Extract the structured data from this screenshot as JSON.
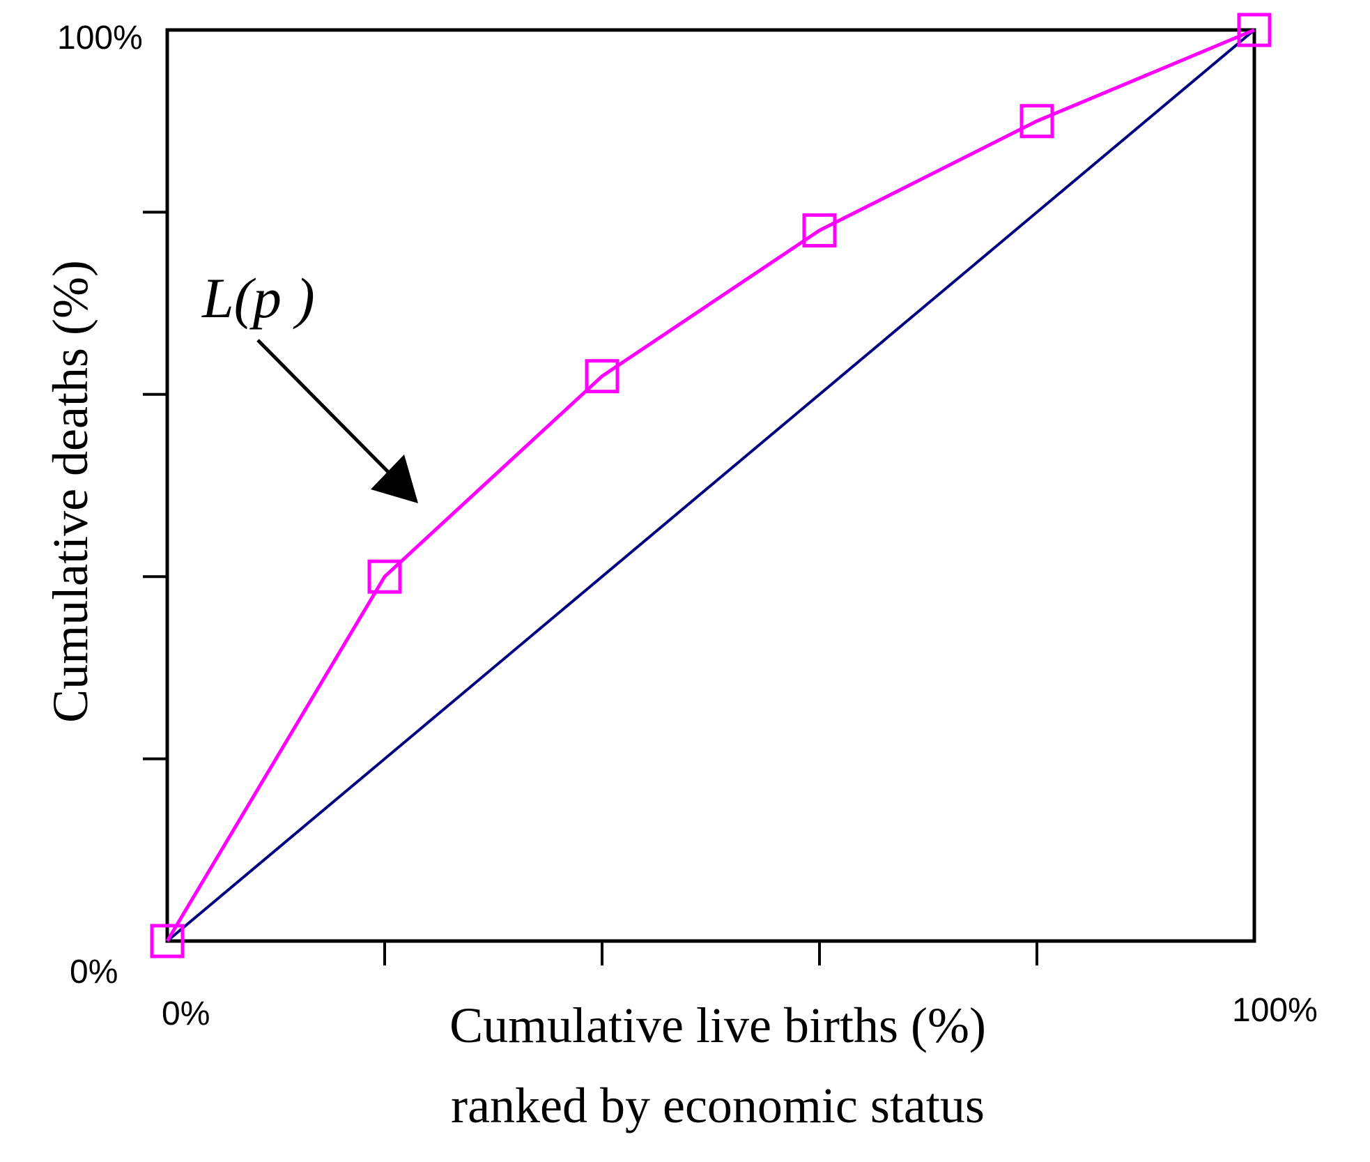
{
  "chart_data": {
    "type": "line",
    "x": [
      0,
      20,
      40,
      60,
      80,
      100
    ],
    "series": [
      {
        "values": [
          0,
          40,
          62,
          78,
          90,
          100
        ],
        "color": "#ff00ff",
        "marker": "square"
      },
      {
        "values": [
          0,
          20,
          40,
          60,
          80,
          100
        ],
        "color": "#000080",
        "marker": "none"
      }
    ],
    "x_tick_labels": [
      "0%",
      "100%"
    ],
    "y_tick_labels": [
      "0%",
      "100%"
    ],
    "xlabel_lines": [
      "Cumulative live births (%)",
      "ranked by economic status"
    ],
    "ylabel": "Cumulative deaths (%)",
    "annotation": "L(p )",
    "xlim": [
      0,
      100
    ],
    "ylim": [
      0,
      100
    ],
    "grid": false,
    "legend": "none"
  }
}
